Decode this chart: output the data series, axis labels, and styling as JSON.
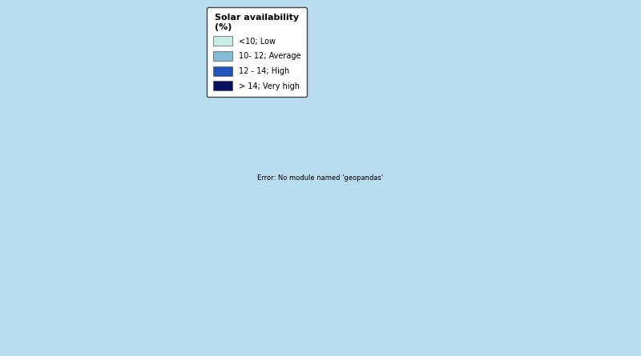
{
  "legend_title": "Solar availability\n(%)",
  "legend_entries": [
    {
      "label": "<10; Low",
      "color": "#c8ede6"
    },
    {
      "label": "10- 12; Average",
      "color": "#82bcd6"
    },
    {
      "label": "12 - 14; High",
      "color": "#2255bb"
    },
    {
      "label": "> 14; Very high",
      "color": "#0a1060"
    }
  ],
  "ocean_color": "#b8ddf0",
  "land_color": "#f5f5f5",
  "non_eu_color": "#cccccc",
  "border_color": "#aaaaaa",
  "border_width": 0.3,
  "figsize": [
    8.0,
    4.45
  ],
  "dpi": 100,
  "map_xlim": [
    -25,
    45
  ],
  "map_ylim": [
    33,
    73
  ]
}
